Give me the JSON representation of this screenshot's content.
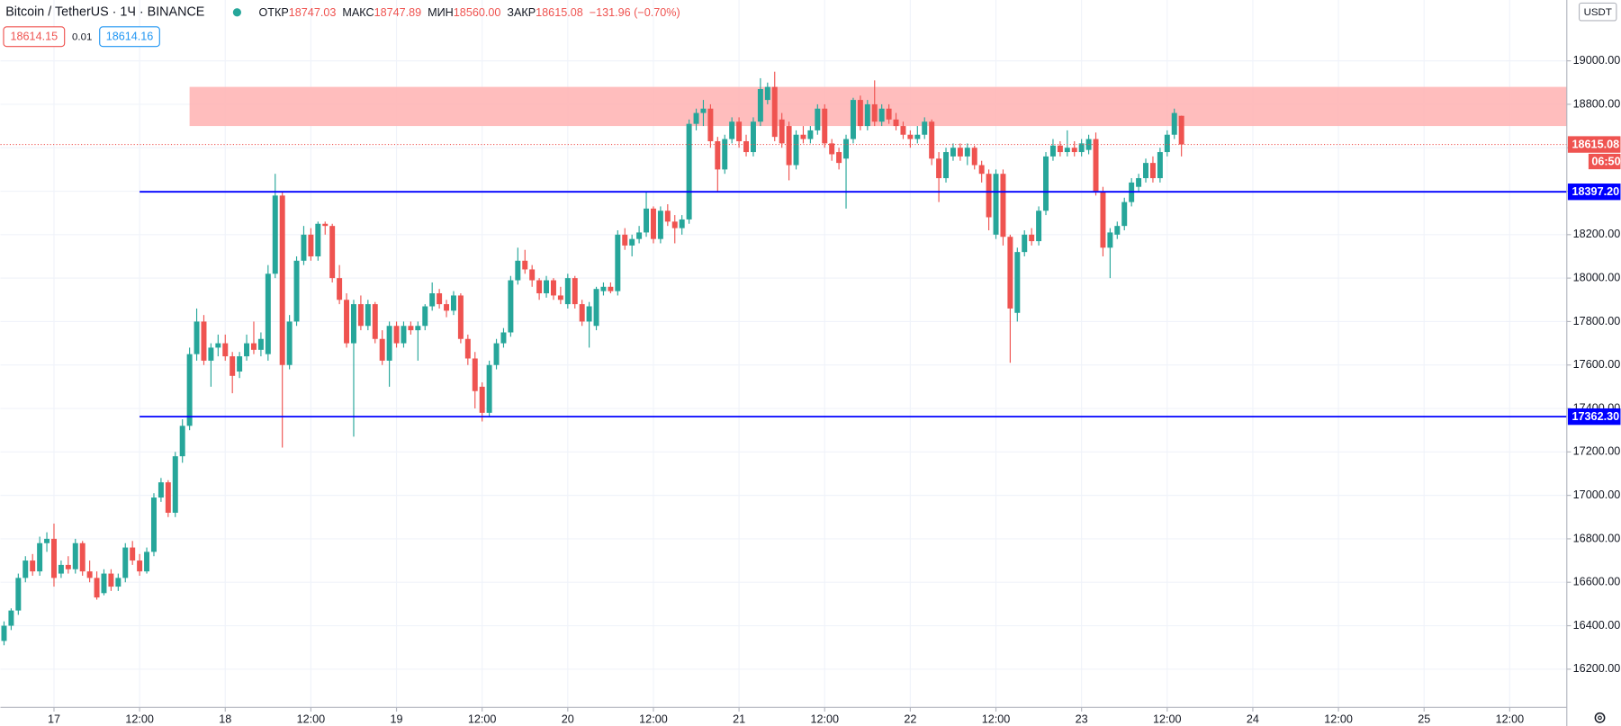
{
  "header": {
    "symbol": "Bitcoin / TetherUS · 1Ч · BINANCE",
    "open_label": "ОТКР",
    "open": "18747.03",
    "high_label": "МАКС",
    "high": "18747.89",
    "low_label": "МИН",
    "low": "18560.00",
    "close_label": "ЗАКР",
    "close": "18615.08",
    "change": "−131.96 (−0.70%)"
  },
  "bid": "18614.15",
  "spread": "0.01",
  "ask": "18614.16",
  "currency": "USDT",
  "chart_data": {
    "type": "candlestick",
    "up_color": "#26a69a",
    "down_color": "#ef5350",
    "grid": true,
    "xlim": [
      -7.5,
      212
    ],
    "ylim": [
      16024,
      19280
    ],
    "xticks": [
      {
        "value": 0,
        "label": "17"
      },
      {
        "value": 12,
        "label": "12:00"
      },
      {
        "value": 24,
        "label": "18"
      },
      {
        "value": 36,
        "label": "12:00"
      },
      {
        "value": 48,
        "label": "19"
      },
      {
        "value": 60,
        "label": "12:00"
      },
      {
        "value": 72,
        "label": "20"
      },
      {
        "value": 84,
        "label": "12:00"
      },
      {
        "value": 96,
        "label": "21"
      },
      {
        "value": 108,
        "label": "12:00"
      },
      {
        "value": 120,
        "label": "22"
      },
      {
        "value": 132,
        "label": "12:00"
      },
      {
        "value": 144,
        "label": "23"
      },
      {
        "value": 156,
        "label": "12:00"
      },
      {
        "value": 168,
        "label": "24"
      },
      {
        "value": 180,
        "label": "12:00"
      },
      {
        "value": 192,
        "label": "25"
      },
      {
        "value": 204,
        "label": "12:00"
      }
    ],
    "yticks": [
      {
        "value": 16200,
        "label": "16200.00"
      },
      {
        "value": 16400,
        "label": "16400.00"
      },
      {
        "value": 16600,
        "label": "16600.00"
      },
      {
        "value": 16800,
        "label": "16800.00"
      },
      {
        "value": 17000,
        "label": "17000.00"
      },
      {
        "value": 17200,
        "label": "17200.00"
      },
      {
        "value": 17400,
        "label": "17400.00"
      },
      {
        "value": 17600,
        "label": "17600.00"
      },
      {
        "value": 17800,
        "label": "17800.00"
      },
      {
        "value": 18000,
        "label": "18000.00"
      },
      {
        "value": 18200,
        "label": "18200.00"
      },
      {
        "value": 18400,
        "label": "18400.00"
      },
      {
        "value": 18600,
        "label": "18600.00"
      },
      {
        "value": 18800,
        "label": "18800.00"
      },
      {
        "value": 19000,
        "label": "19000.00"
      }
    ],
    "zone": {
      "from": 19,
      "low": 18700,
      "high": 18880,
      "color": "#ffb6b6"
    },
    "levels": [
      {
        "value": 18397.2,
        "label": "18397.20",
        "from": 12,
        "color": "#0000ff"
      },
      {
        "value": 17362.3,
        "label": "17362.30",
        "from": 12,
        "color": "#0000ff"
      }
    ],
    "last_price": {
      "value": 18615.08,
      "label": "18615.08",
      "countdown": "06:50",
      "color": "#ef5350"
    },
    "x": [
      -7,
      -6,
      -5,
      -4,
      -3,
      -2,
      -1,
      0,
      1,
      2,
      3,
      4,
      5,
      6,
      7,
      8,
      9,
      10,
      11,
      12,
      13,
      14,
      15,
      16,
      17,
      18,
      19,
      20,
      21,
      22,
      23,
      24,
      25,
      26,
      27,
      28,
      29,
      30,
      31,
      32,
      33,
      34,
      35,
      36,
      37,
      38,
      39,
      40,
      41,
      42,
      43,
      44,
      45,
      46,
      47,
      48,
      49,
      50,
      51,
      52,
      53,
      54,
      55,
      56,
      57,
      58,
      59,
      60,
      61,
      62,
      63,
      64,
      65,
      66,
      67,
      68,
      69,
      70,
      71,
      72,
      73,
      74,
      75,
      76,
      77,
      78,
      79,
      80,
      81,
      82,
      83,
      84,
      85,
      86,
      87,
      88,
      89,
      90,
      91,
      92,
      93,
      94,
      95,
      96,
      97,
      98,
      99,
      100,
      101,
      102,
      103,
      104,
      105,
      106,
      107,
      108,
      109,
      110,
      111,
      112,
      113,
      114,
      115,
      116,
      117,
      118,
      119,
      120,
      121,
      122,
      123,
      124,
      125,
      126,
      127,
      128,
      129,
      130,
      131,
      132,
      133,
      134,
      135,
      136,
      137,
      138,
      139,
      140,
      141,
      142,
      143,
      144,
      145,
      146,
      147,
      148,
      149,
      150,
      151,
      152,
      153,
      154,
      155,
      156,
      157,
      158
    ],
    "ohlc": [
      [
        16330,
        16420,
        16310,
        16400
      ],
      [
        16400,
        16480,
        16380,
        16470
      ],
      [
        16470,
        16640,
        16450,
        16620
      ],
      [
        16620,
        16720,
        16600,
        16700
      ],
      [
        16700,
        16730,
        16630,
        16650
      ],
      [
        16650,
        16810,
        16630,
        16780
      ],
      [
        16780,
        16830,
        16740,
        16800
      ],
      [
        16800,
        16870,
        16580,
        16620
      ],
      [
        16640,
        16700,
        16620,
        16680
      ],
      [
        16680,
        16720,
        16640,
        16660
      ],
      [
        16660,
        16800,
        16640,
        16780
      ],
      [
        16780,
        16790,
        16630,
        16650
      ],
      [
        16650,
        16700,
        16600,
        16620
      ],
      [
        16620,
        16650,
        16520,
        16530
      ],
      [
        16550,
        16660,
        16540,
        16640
      ],
      [
        16640,
        16660,
        16560,
        16580
      ],
      [
        16580,
        16640,
        16560,
        16620
      ],
      [
        16620,
        16780,
        16600,
        16760
      ],
      [
        16760,
        16790,
        16680,
        16700
      ],
      [
        16700,
        16730,
        16630,
        16650
      ],
      [
        16650,
        16760,
        16640,
        16740
      ],
      [
        16740,
        17010,
        16720,
        16990
      ],
      [
        16990,
        17080,
        16970,
        17060
      ],
      [
        17060,
        17070,
        16900,
        16920
      ],
      [
        16920,
        17200,
        16900,
        17180
      ],
      [
        17180,
        17350,
        17150,
        17320
      ],
      [
        17320,
        17680,
        17300,
        17650
      ],
      [
        17650,
        17860,
        17620,
        17800
      ],
      [
        17800,
        17830,
        17600,
        17620
      ],
      [
        17620,
        17700,
        17500,
        17680
      ],
      [
        17680,
        17740,
        17640,
        17700
      ],
      [
        17700,
        17740,
        17620,
        17640
      ],
      [
        17640,
        17660,
        17470,
        17550
      ],
      [
        17570,
        17660,
        17540,
        17640
      ],
      [
        17640,
        17740,
        17620,
        17700
      ],
      [
        17700,
        17800,
        17650,
        17670
      ],
      [
        17670,
        17750,
        17640,
        17720
      ],
      [
        17650,
        18060,
        17620,
        18020
      ],
      [
        18020,
        18480,
        18000,
        18380
      ],
      [
        18380,
        18400,
        17220,
        17600
      ],
      [
        17600,
        17830,
        17580,
        17800
      ],
      [
        17800,
        18100,
        17780,
        18080
      ],
      [
        18080,
        18240,
        18060,
        18200
      ],
      [
        18200,
        18230,
        18080,
        18100
      ],
      [
        18100,
        18260,
        18080,
        18250
      ],
      [
        18250,
        18260,
        18200,
        18240
      ],
      [
        18240,
        18250,
        17980,
        18000
      ],
      [
        18000,
        18060,
        17880,
        17900
      ],
      [
        17900,
        17930,
        17680,
        17700
      ],
      [
        17700,
        17900,
        17270,
        17880
      ],
      [
        17880,
        17920,
        17760,
        17780
      ],
      [
        17780,
        17900,
        17760,
        17880
      ],
      [
        17880,
        17890,
        17700,
        17720
      ],
      [
        17720,
        17760,
        17600,
        17620
      ],
      [
        17620,
        17800,
        17500,
        17780
      ],
      [
        17780,
        17800,
        17680,
        17700
      ],
      [
        17700,
        17800,
        17680,
        17780
      ],
      [
        17780,
        17800,
        17740,
        17760
      ],
      [
        17760,
        17800,
        17620,
        17780
      ],
      [
        17780,
        17880,
        17760,
        17870
      ],
      [
        17870,
        17980,
        17850,
        17930
      ],
      [
        17930,
        17950,
        17860,
        17880
      ],
      [
        17880,
        17900,
        17820,
        17850
      ],
      [
        17850,
        17940,
        17830,
        17920
      ],
      [
        17920,
        17930,
        17700,
        17720
      ],
      [
        17720,
        17740,
        17600,
        17630
      ],
      [
        17630,
        17660,
        17400,
        17480
      ],
      [
        17500,
        17520,
        17340,
        17380
      ],
      [
        17380,
        17620,
        17360,
        17600
      ],
      [
        17600,
        17720,
        17580,
        17700
      ],
      [
        17700,
        17770,
        17680,
        17750
      ],
      [
        17750,
        18010,
        17730,
        17990
      ],
      [
        17990,
        18140,
        17970,
        18080
      ],
      [
        18080,
        18130,
        18020,
        18040
      ],
      [
        18040,
        18060,
        17960,
        17990
      ],
      [
        17990,
        18000,
        17900,
        17930
      ],
      [
        17930,
        18010,
        17910,
        17990
      ],
      [
        17990,
        18000,
        17900,
        17920
      ],
      [
        17920,
        17960,
        17880,
        17900
      ],
      [
        17880,
        18020,
        17860,
        18000
      ],
      [
        18000,
        18010,
        17860,
        17880
      ],
      [
        17880,
        17900,
        17780,
        17800
      ],
      [
        17800,
        17890,
        17680,
        17870
      ],
      [
        17780,
        17960,
        17760,
        17950
      ],
      [
        17940,
        17980,
        17920,
        17960
      ],
      [
        17960,
        17980,
        17930,
        17940
      ],
      [
        17940,
        18220,
        17920,
        18200
      ],
      [
        18200,
        18230,
        18130,
        18150
      ],
      [
        18150,
        18200,
        18100,
        18180
      ],
      [
        18180,
        18240,
        18160,
        18210
      ],
      [
        18210,
        18400,
        18190,
        18320
      ],
      [
        18320,
        18330,
        18160,
        18180
      ],
      [
        18180,
        18330,
        18160,
        18310
      ],
      [
        18310,
        18340,
        18240,
        18260
      ],
      [
        18260,
        18290,
        18160,
        18230
      ],
      [
        18230,
        18290,
        18200,
        18270
      ],
      [
        18270,
        18730,
        18250,
        18710
      ],
      [
        18710,
        18780,
        18680,
        18760
      ],
      [
        18760,
        18820,
        18700,
        18780
      ],
      [
        18780,
        18800,
        18600,
        18630
      ],
      [
        18630,
        18650,
        18400,
        18500
      ],
      [
        18500,
        18660,
        18480,
        18640
      ],
      [
        18640,
        18740,
        18620,
        18720
      ],
      [
        18720,
        18740,
        18600,
        18630
      ],
      [
        18630,
        18660,
        18560,
        18580
      ],
      [
        18580,
        18740,
        18560,
        18720
      ],
      [
        18720,
        18920,
        18700,
        18870
      ],
      [
        18820,
        18900,
        18800,
        18880
      ],
      [
        18880,
        18950,
        18630,
        18650
      ],
      [
        18730,
        18760,
        18600,
        18620
      ],
      [
        18700,
        18720,
        18450,
        18520
      ],
      [
        18520,
        18680,
        18500,
        18660
      ],
      [
        18660,
        18700,
        18620,
        18640
      ],
      [
        18640,
        18700,
        18620,
        18680
      ],
      [
        18680,
        18800,
        18660,
        18780
      ],
      [
        18780,
        18800,
        18600,
        18620
      ],
      [
        18620,
        18640,
        18540,
        18570
      ],
      [
        18580,
        18600,
        18500,
        18530
      ],
      [
        18550,
        18660,
        18320,
        18640
      ],
      [
        18640,
        18830,
        18620,
        18820
      ],
      [
        18820,
        18840,
        18680,
        18700
      ],
      [
        18700,
        18820,
        18680,
        18800
      ],
      [
        18800,
        18910,
        18700,
        18720
      ],
      [
        18720,
        18800,
        18700,
        18780
      ],
      [
        18780,
        18800,
        18710,
        18730
      ],
      [
        18730,
        18760,
        18680,
        18700
      ],
      [
        18700,
        18720,
        18640,
        18660
      ],
      [
        18660,
        18680,
        18600,
        18640
      ],
      [
        18640,
        18700,
        18620,
        18660
      ],
      [
        18660,
        18740,
        18640,
        18720
      ],
      [
        18720,
        18730,
        18520,
        18550
      ],
      [
        18550,
        18580,
        18350,
        18460
      ],
      [
        18460,
        18600,
        18440,
        18580
      ],
      [
        18560,
        18620,
        18540,
        18600
      ],
      [
        18600,
        18620,
        18540,
        18560
      ],
      [
        18560,
        18620,
        18520,
        18600
      ],
      [
        18600,
        18610,
        18500,
        18520
      ],
      [
        18520,
        18540,
        18440,
        18480
      ],
      [
        18480,
        18500,
        18220,
        18280
      ],
      [
        18200,
        18500,
        18180,
        18480
      ],
      [
        18480,
        18500,
        18150,
        18190
      ],
      [
        18190,
        18200,
        17610,
        17860
      ],
      [
        17840,
        18140,
        17800,
        18120
      ],
      [
        18120,
        18220,
        18100,
        18200
      ],
      [
        18200,
        18230,
        18150,
        18170
      ],
      [
        18170,
        18330,
        18150,
        18310
      ],
      [
        18310,
        18580,
        18290,
        18560
      ],
      [
        18560,
        18640,
        18540,
        18610
      ],
      [
        18610,
        18630,
        18560,
        18580
      ],
      [
        18580,
        18680,
        18560,
        18600
      ],
      [
        18600,
        18630,
        18560,
        18580
      ],
      [
        18580,
        18640,
        18560,
        18620
      ],
      [
        18590,
        18660,
        18570,
        18640
      ],
      [
        18640,
        18670,
        18380,
        18400
      ],
      [
        18400,
        18420,
        18100,
        18140
      ],
      [
        18140,
        18230,
        18000,
        18210
      ],
      [
        18200,
        18260,
        18180,
        18240
      ],
      [
        18240,
        18370,
        18220,
        18350
      ],
      [
        18350,
        18460,
        18330,
        18440
      ],
      [
        18420,
        18480,
        18400,
        18460
      ],
      [
        18460,
        18550,
        18440,
        18530
      ],
      [
        18530,
        18560,
        18440,
        18460
      ],
      [
        18460,
        18600,
        18440,
        18580
      ],
      [
        18580,
        18680,
        18560,
        18660
      ],
      [
        18660,
        18780,
        18640,
        18760
      ],
      [
        18747.03,
        18747.89,
        18560,
        18615.08
      ]
    ]
  }
}
